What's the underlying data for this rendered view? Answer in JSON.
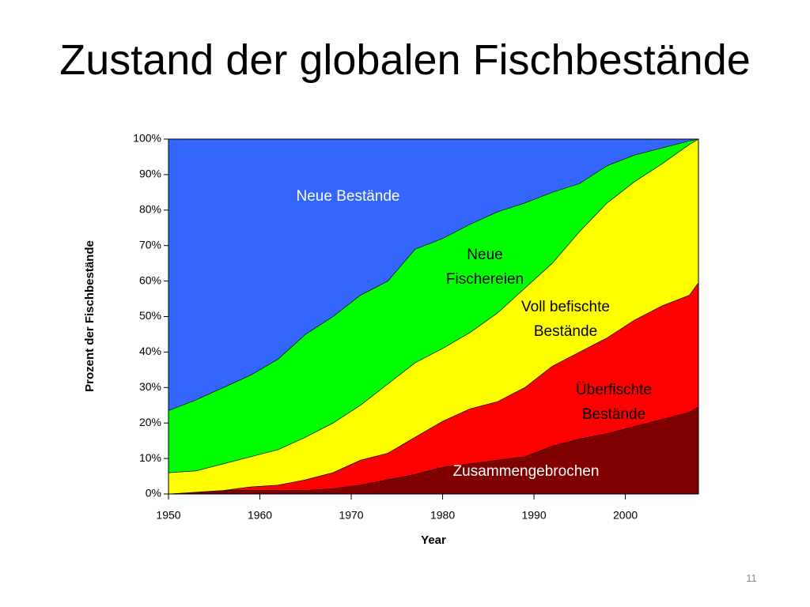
{
  "title": "Zustand der globalen Fischbestände",
  "slide_number": "11",
  "chart_data": {
    "type": "stacked_area",
    "stacked": true,
    "x_label": "Year",
    "y_label": "Prozent der Fischbestände",
    "x": [
      1950,
      1953,
      1956,
      1959,
      1962,
      1965,
      1968,
      1971,
      1974,
      1977,
      1980,
      1983,
      1986,
      1989,
      1992,
      1995,
      1998,
      2001,
      2004,
      2007,
      2008
    ],
    "series": [
      {
        "name": "Zusammengebrochen",
        "color": "#800000",
        "label_color": "#ffffff",
        "values": [
          0,
          0.5,
          1,
          1,
          1,
          1,
          1.5,
          2.5,
          4,
          5.5,
          7.5,
          8.5,
          9.5,
          10.5,
          13.5,
          15.5,
          17,
          19,
          21,
          23,
          24.5
        ]
      },
      {
        "name": "Überfischte Bestände",
        "color": "#ff0000",
        "label_color": "#000000",
        "values": [
          0,
          0,
          0,
          1,
          1.5,
          3,
          4.5,
          7,
          7.5,
          10.5,
          13,
          15.5,
          16.5,
          19.5,
          22.5,
          24.5,
          27,
          30,
          32,
          33,
          35
        ]
      },
      {
        "name": "Voll befischte Bestände",
        "color": "#ffff00",
        "label_color": "#000000",
        "values": [
          6,
          6,
          7.5,
          8.5,
          10,
          12,
          14,
          15.5,
          19.5,
          21,
          20.5,
          21.5,
          25,
          28,
          29,
          34,
          38,
          39,
          40,
          42.5,
          40.5
        ]
      },
      {
        "name": "Neue Fischereien",
        "color": "#00ff00",
        "label_color": "#000000",
        "values": [
          17.5,
          20,
          21.5,
          23,
          25.5,
          29,
          30,
          31,
          29,
          32,
          31,
          30.5,
          28.5,
          24,
          20,
          13.5,
          10.5,
          7.5,
          4.5,
          1,
          0
        ]
      },
      {
        "name": "Neue Bestände",
        "color": "#3366ff",
        "label_color": "#ffffff",
        "values": [
          76.5,
          73.5,
          70,
          66.5,
          62,
          55,
          50,
          44,
          40,
          31,
          28,
          24,
          20.5,
          18,
          15,
          12.5,
          7.5,
          4.5,
          2.5,
          0.5,
          0
        ]
      }
    ],
    "xlim": [
      1950,
      2008
    ],
    "xticks": [
      1950,
      1960,
      1970,
      1980,
      1990,
      2000
    ],
    "ylim": [
      0,
      100
    ],
    "yticks": [
      {
        "value": 0,
        "label": "0%"
      },
      {
        "value": 10,
        "label": "10%"
      },
      {
        "value": 20,
        "label": "20%"
      },
      {
        "value": 30,
        "label": "30%"
      },
      {
        "value": 40,
        "label": "40%"
      },
      {
        "value": 50,
        "label": "50%"
      },
      {
        "value": 60,
        "label": "60%"
      },
      {
        "value": 70,
        "label": "70%"
      },
      {
        "value": 80,
        "label": "80%"
      },
      {
        "value": 90,
        "label": "90%"
      },
      {
        "value": 100,
        "label": "100%"
      }
    ]
  }
}
